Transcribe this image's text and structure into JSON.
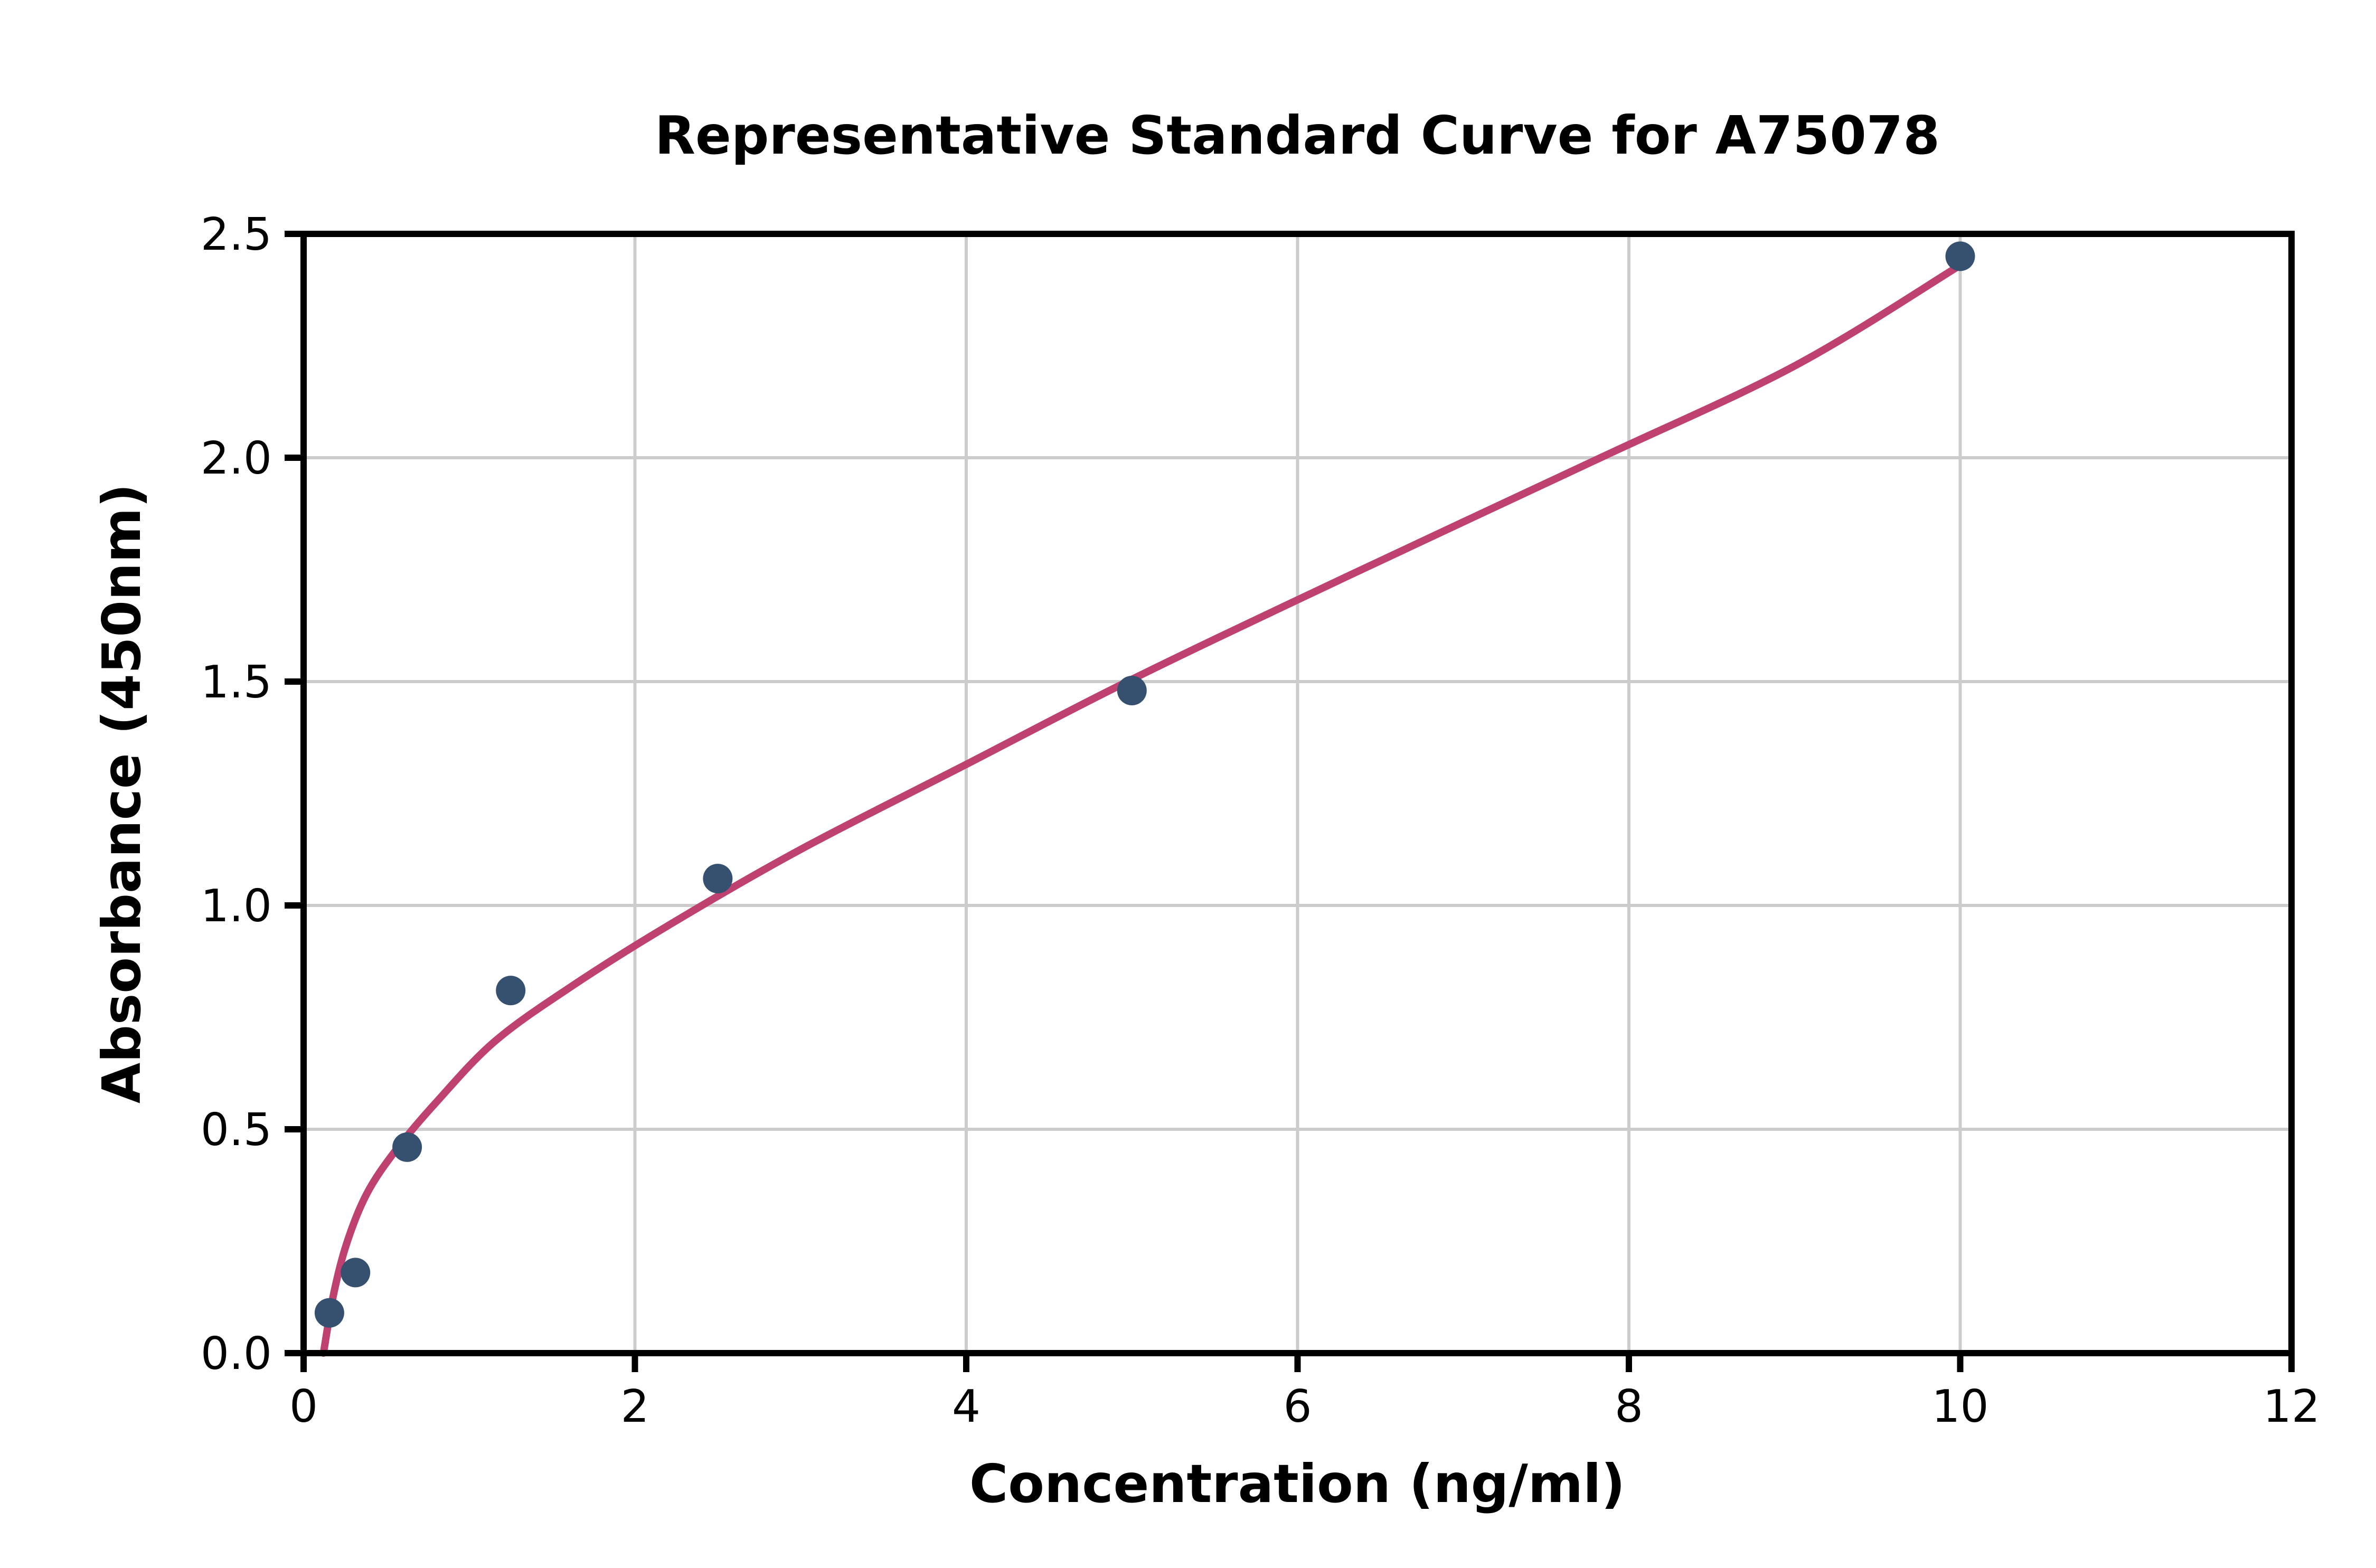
{
  "chart_data": {
    "type": "scatter",
    "title": "Representative Standard Curve for A75078",
    "xlabel": "Concentration (ng/ml)",
    "ylabel": "Absorbance (450nm)",
    "xlim": [
      0,
      12
    ],
    "ylim": [
      0,
      2.5
    ],
    "xticks": [
      0,
      2,
      4,
      6,
      8,
      10,
      12
    ],
    "xtick_labels": [
      "0",
      "2",
      "4",
      "6",
      "8",
      "10",
      "12"
    ],
    "yticks": [
      0,
      0.5,
      1.0,
      1.5,
      2.0,
      2.5
    ],
    "ytick_labels": [
      "0.0",
      "0.5",
      "1.0",
      "1.5",
      "2.0",
      "2.5"
    ],
    "grid": true,
    "legend": false,
    "points": [
      {
        "x": 0.156,
        "y": 0.09
      },
      {
        "x": 0.313,
        "y": 0.18
      },
      {
        "x": 0.625,
        "y": 0.46
      },
      {
        "x": 1.25,
        "y": 0.81
      },
      {
        "x": 2.5,
        "y": 1.06
      },
      {
        "x": 5.0,
        "y": 1.48
      },
      {
        "x": 10.0,
        "y": 2.45
      }
    ],
    "fit_curve_points": [
      [
        0.12,
        0.0
      ],
      [
        0.18,
        0.13
      ],
      [
        0.26,
        0.245
      ],
      [
        0.38,
        0.355
      ],
      [
        0.55,
        0.45
      ],
      [
        0.8,
        0.56
      ],
      [
        1.15,
        0.695
      ],
      [
        1.6,
        0.815
      ],
      [
        2.2,
        0.955
      ],
      [
        3.0,
        1.125
      ],
      [
        4.0,
        1.315
      ],
      [
        5.0,
        1.505
      ],
      [
        6.3,
        1.735
      ],
      [
        7.8,
        1.995
      ],
      [
        9.0,
        2.205
      ],
      [
        10.0,
        2.43
      ]
    ],
    "point_color": "#35516f",
    "curve_color": "#bf4170",
    "grid_color": "#cccccc",
    "axis_color": "#000000",
    "text_color": "#000000"
  }
}
